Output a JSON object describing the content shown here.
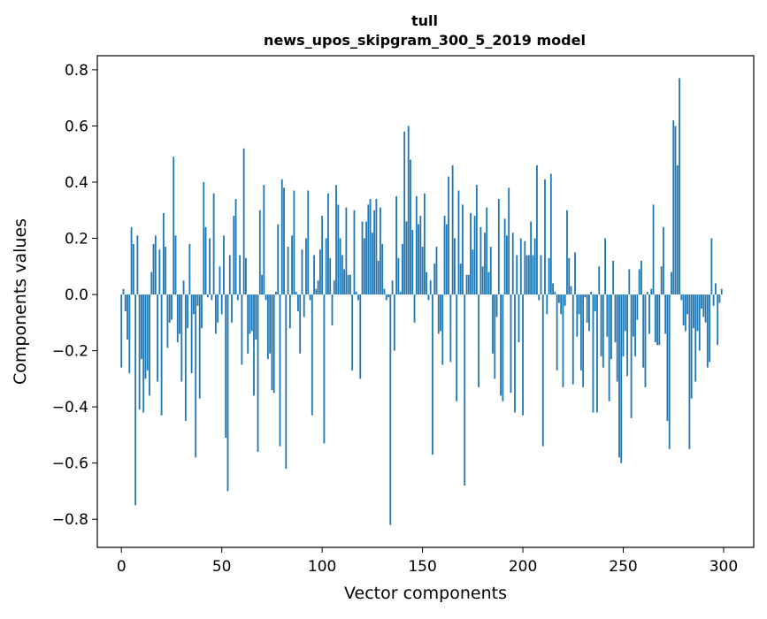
{
  "chart_data": {
    "type": "bar",
    "title_lines": [
      "tull",
      "news_upos_skipgram_300_5_2019 model"
    ],
    "xlabel": "Vector components",
    "ylabel": "Components values",
    "xlim": [
      -12,
      315
    ],
    "ylim": [
      -0.9,
      0.85
    ],
    "xticks": [
      0,
      50,
      100,
      150,
      200,
      250,
      300
    ],
    "xtick_labels": [
      "0",
      "50",
      "100",
      "150",
      "200",
      "250",
      "300"
    ],
    "yticks": [
      -0.8,
      -0.6,
      -0.4,
      -0.2,
      0.0,
      0.2,
      0.4,
      0.6,
      0.8
    ],
    "ytick_labels": [
      "−0.8",
      "−0.6",
      "−0.4",
      "−0.2",
      "0.0",
      "0.2",
      "0.4",
      "0.6",
      "0.8"
    ],
    "grid": false,
    "bar_color": "#1f77b4",
    "values": [
      -0.26,
      0.02,
      -0.06,
      -0.16,
      -0.28,
      0.24,
      0.18,
      -0.75,
      0.21,
      -0.41,
      -0.23,
      -0.42,
      -0.3,
      -0.27,
      -0.36,
      0.08,
      0.18,
      0.21,
      -0.31,
      0.16,
      -0.43,
      0.29,
      0.17,
      -0.19,
      -0.1,
      -0.09,
      0.49,
      0.21,
      -0.17,
      -0.14,
      -0.31,
      0.05,
      -0.45,
      -0.12,
      0.18,
      -0.28,
      -0.07,
      -0.58,
      -0.04,
      -0.37,
      -0.12,
      0.4,
      0.24,
      -0.01,
      0.2,
      -0.02,
      0.36,
      -0.14,
      -0.1,
      0.1,
      -0.07,
      0.21,
      -0.51,
      -0.7,
      0.14,
      -0.1,
      0.28,
      0.34,
      -0.02,
      0.14,
      -0.25,
      0.52,
      0.13,
      -0.21,
      -0.14,
      -0.13,
      -0.36,
      -0.16,
      -0.56,
      0.3,
      0.07,
      0.39,
      -0.02,
      -0.23,
      -0.21,
      -0.34,
      -0.35,
      0.01,
      0.25,
      -0.54,
      0.41,
      0.38,
      -0.62,
      0.17,
      -0.12,
      0.21,
      0.37,
      0.01,
      -0.06,
      -0.21,
      0.16,
      -0.08,
      0.2,
      0.37,
      -0.02,
      -0.43,
      0.14,
      0.02,
      0.05,
      0.16,
      0.28,
      -0.53,
      0.2,
      0.36,
      0.13,
      -0.11,
      0.05,
      0.39,
      0.32,
      0.2,
      0.14,
      0.09,
      0.31,
      0.07,
      0.07,
      -0.27,
      0.3,
      0.01,
      -0.02,
      -0.3,
      0.26,
      0.2,
      0.26,
      0.32,
      0.34,
      0.22,
      0.3,
      0.34,
      0.12,
      0.31,
      0.18,
      0.02,
      -0.02,
      -0.01,
      -0.82,
      0.05,
      -0.2,
      0.35,
      0.13,
      0.01,
      0.18,
      0.58,
      0.26,
      0.6,
      0.48,
      0.23,
      -0.1,
      0.35,
      0.25,
      0.28,
      0.17,
      0.36,
      0.08,
      -0.02,
      0.05,
      -0.57,
      0.11,
      0.17,
      -0.14,
      -0.13,
      -0.25,
      0.28,
      0.25,
      0.42,
      -0.24,
      0.46,
      0.2,
      -0.38,
      0.37,
      0.11,
      0.32,
      -0.68,
      0.07,
      0.07,
      0.29,
      0.16,
      0.28,
      0.39,
      -0.33,
      0.24,
      0.1,
      0.22,
      0.31,
      0.08,
      0.17,
      -0.21,
      -0.3,
      -0.08,
      0.34,
      -0.36,
      -0.38,
      0.27,
      0.21,
      0.38,
      -0.35,
      0.22,
      -0.42,
      0.14,
      -0.17,
      0.2,
      -0.43,
      0.19,
      0.14,
      0.14,
      0.26,
      0.14,
      0.2,
      0.46,
      -0.02,
      0.14,
      -0.54,
      0.41,
      -0.07,
      0.13,
      0.43,
      0.04,
      0.01,
      -0.27,
      -0.03,
      -0.07,
      -0.33,
      -0.04,
      0.3,
      0.13,
      0.03,
      -0.32,
      0.15,
      -0.15,
      -0.07,
      -0.27,
      -0.33,
      -0.01,
      -0.1,
      -0.13,
      0.01,
      -0.42,
      -0.06,
      -0.42,
      0.1,
      -0.22,
      -0.26,
      0.2,
      -0.15,
      -0.38,
      -0.23,
      0.12,
      -0.17,
      -0.31,
      -0.58,
      -0.6,
      -0.22,
      -0.13,
      -0.29,
      0.09,
      -0.44,
      -0.15,
      -0.22,
      -0.09,
      0.09,
      0.12,
      -0.26,
      -0.33,
      0.01,
      -0.14,
      0.02,
      0.32,
      -0.17,
      -0.18,
      -0.18,
      0.1,
      0.24,
      -0.14,
      -0.45,
      -0.55,
      0.08,
      0.62,
      0.6,
      0.46,
      0.77,
      -0.02,
      -0.11,
      -0.13,
      -0.07,
      -0.55,
      -0.37,
      -0.12,
      -0.31,
      -0.13,
      -0.2,
      -0.05,
      -0.08,
      -0.1,
      -0.26,
      -0.24,
      0.2,
      -0.04,
      0.04,
      -0.18,
      -0.03,
      0.02
    ]
  }
}
